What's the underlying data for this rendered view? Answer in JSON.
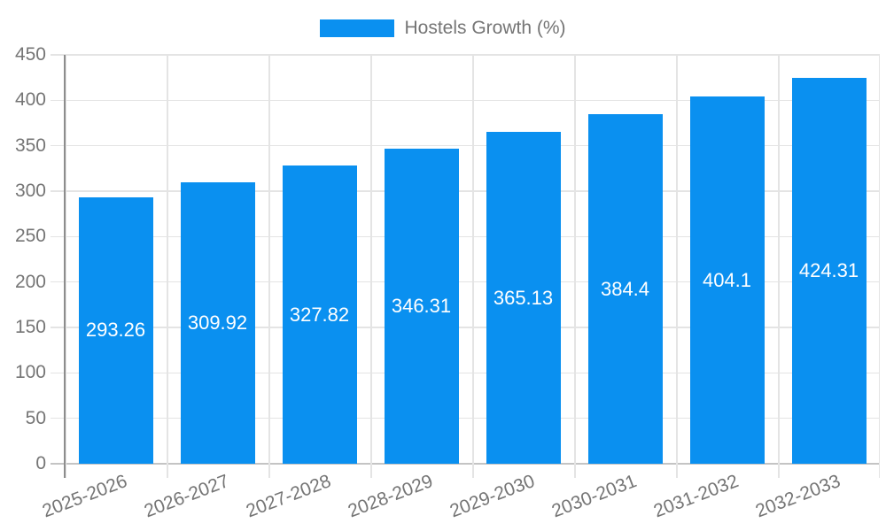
{
  "legend": {
    "label": "Hostels Growth (%)"
  },
  "chart_data": {
    "type": "bar",
    "title": "",
    "xlabel": "",
    "ylabel": "",
    "series_name": "Hostels Growth (%)",
    "categories": [
      "2025-2026",
      "2026-2027",
      "2027-2028",
      "2028-2029",
      "2029-2030",
      "2030-2031",
      "2031-2032",
      "2032-2033"
    ],
    "values": [
      293.26,
      309.92,
      327.82,
      346.31,
      365.13,
      384.4,
      404.1,
      424.31
    ],
    "value_labels": [
      "293.26",
      "309.92",
      "327.82",
      "346.31",
      "365.13",
      "384.4",
      "404.1",
      "424.31"
    ],
    "ylim": [
      0,
      450
    ],
    "yticks": [
      0,
      50,
      100,
      150,
      200,
      250,
      300,
      350,
      400,
      450
    ],
    "grid": true,
    "legend_position": "top-center",
    "value_label_position": "inside-center"
  },
  "colors": {
    "bar": "#0a90f0",
    "value_label": "#ffffff",
    "grid": "#e4e4e4",
    "baseline": "#c4c4c4",
    "axis_line": "#8d8d8d",
    "text": "#757575",
    "background": "#ffffff"
  }
}
